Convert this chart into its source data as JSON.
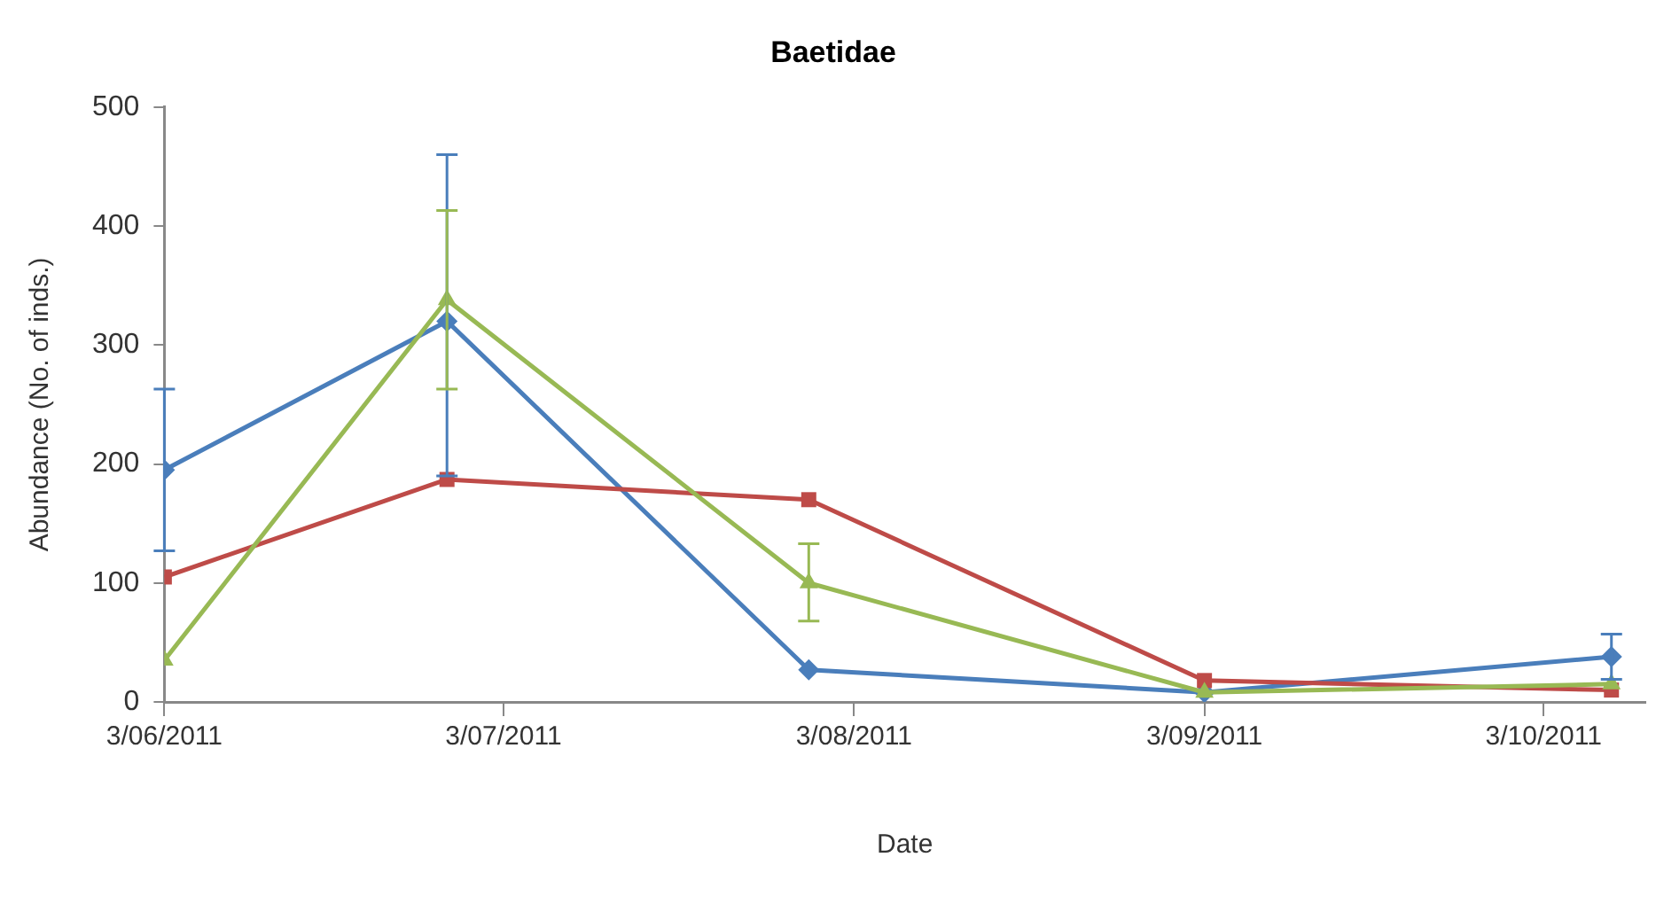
{
  "chart_data": {
    "type": "line",
    "title": "Baetidae",
    "xlabel": "Date",
    "ylabel": "Abundance (No. of inds.)",
    "xlim": [
      "2011-06-03",
      "2011-10-12"
    ],
    "xticks": [
      {
        "value": "2011-06-03",
        "label": "3/06/2011"
      },
      {
        "value": "2011-07-03",
        "label": "3/07/2011"
      },
      {
        "value": "2011-08-03",
        "label": "3/08/2011"
      },
      {
        "value": "2011-09-03",
        "label": "3/09/2011"
      },
      {
        "value": "2011-10-03",
        "label": "3/10/2011"
      }
    ],
    "ylim": [
      0,
      500
    ],
    "yticks": [
      0,
      100,
      200,
      300,
      400,
      500
    ],
    "grid": false,
    "legend": false,
    "series": [
      {
        "color": "#4a7ebb",
        "marker": "diamond",
        "x": [
          "2011-06-03",
          "2011-06-28",
          "2011-07-30",
          "2011-09-03",
          "2011-10-09"
        ],
        "values": [
          195,
          320,
          27,
          8,
          38
        ],
        "errors": [
          [
            127,
            263
          ],
          [
            190,
            460
          ],
          null,
          null,
          [
            19,
            57
          ]
        ]
      },
      {
        "color": "#be4b48",
        "marker": "square",
        "x": [
          "2011-06-03",
          "2011-06-28",
          "2011-07-30",
          "2011-09-03",
          "2011-10-09"
        ],
        "values": [
          105,
          187,
          170,
          18,
          10
        ]
      },
      {
        "color": "#98b954",
        "marker": "triangle",
        "x": [
          "2011-06-03",
          "2011-06-28",
          "2011-07-30",
          "2011-09-03",
          "2011-10-09"
        ],
        "values": [
          35,
          338,
          100,
          8,
          15
        ],
        "errors": [
          null,
          [
            263,
            413
          ],
          [
            68,
            133
          ],
          null,
          null
        ]
      }
    ]
  }
}
